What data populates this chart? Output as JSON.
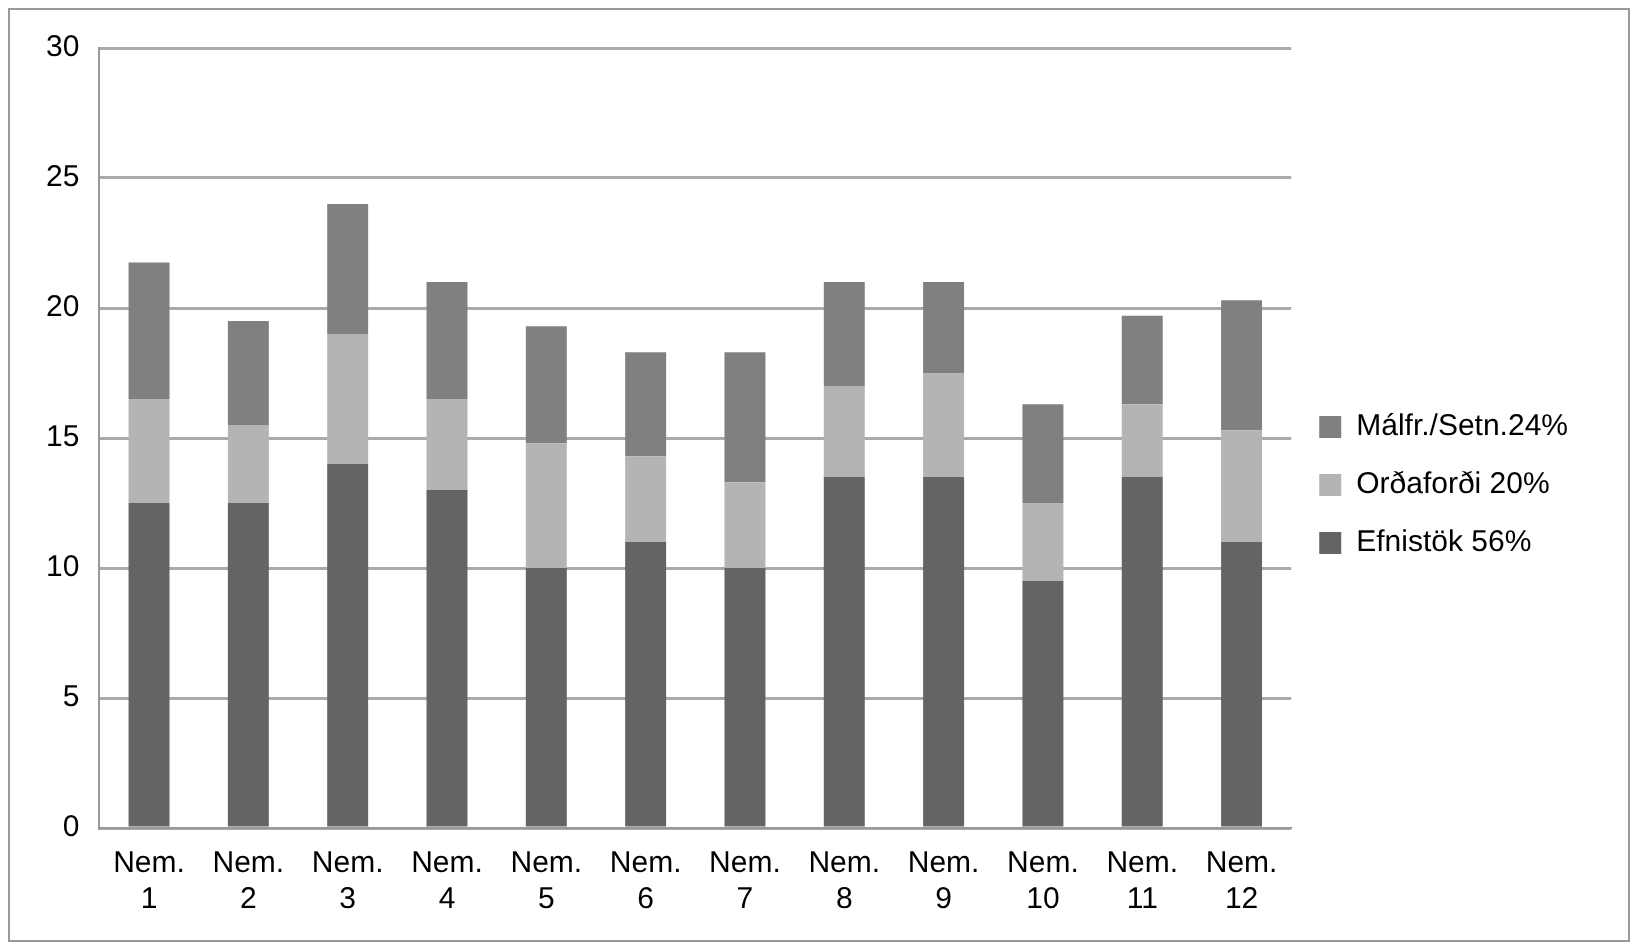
{
  "chart_data": {
    "type": "bar",
    "stacked": true,
    "categories": [
      "Nem. 1",
      "Nem. 2",
      "Nem. 3",
      "Nem. 4",
      "Nem. 5",
      "Nem. 6",
      "Nem. 7",
      "Nem. 8",
      "Nem. 9",
      "Nem. 10",
      "Nem. 11",
      "Nem. 12"
    ],
    "series": [
      {
        "name": "Efnistök 56%",
        "color": "#646464",
        "values": [
          12.5,
          12.5,
          14,
          13,
          10,
          11,
          10,
          13.5,
          13.5,
          9.5,
          13.5,
          11
        ]
      },
      {
        "name": "Orðaforði 20%",
        "color": "#b4b4b4",
        "values": [
          4,
          3,
          5,
          3.5,
          4.8,
          3.3,
          3.3,
          3.5,
          4,
          3,
          2.8,
          4.3
        ]
      },
      {
        "name": "Málfr./Setn.24%",
        "color": "#808080",
        "values": [
          5.25,
          4,
          5,
          4.5,
          4.5,
          4,
          5,
          4,
          3.5,
          3.8,
          3.4,
          5
        ]
      }
    ],
    "ylim": [
      0,
      30
    ],
    "yticks": [
      0,
      5,
      10,
      15,
      20,
      25,
      30
    ],
    "grid": "y",
    "legend": "right"
  }
}
